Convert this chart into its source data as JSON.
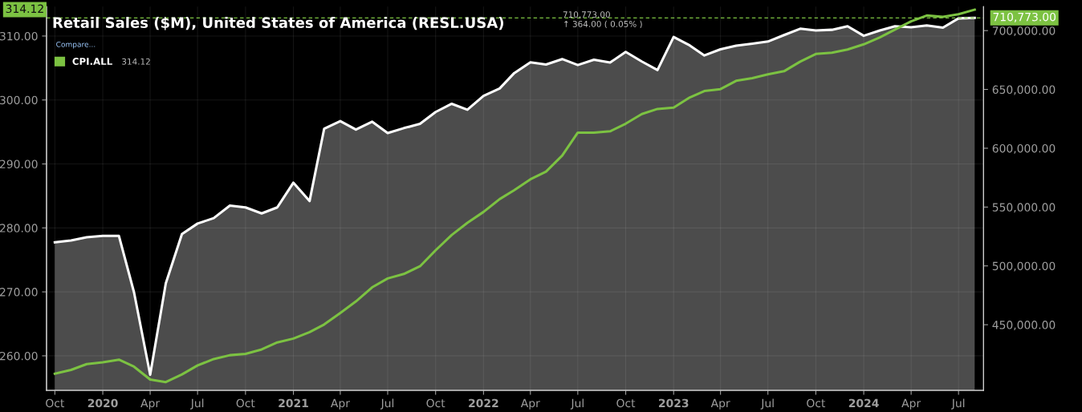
{
  "chart_data": {
    "type": "line",
    "title": "Retail Sales ($M), United States of America (RESL.USA)",
    "x": [
      "2019-10",
      "2019-11",
      "2019-12",
      "2020-01",
      "2020-02",
      "2020-03",
      "2020-04",
      "2020-05",
      "2020-06",
      "2020-07",
      "2020-08",
      "2020-09",
      "2020-10",
      "2020-11",
      "2020-12",
      "2021-01",
      "2021-02",
      "2021-03",
      "2021-04",
      "2021-05",
      "2021-06",
      "2021-07",
      "2021-08",
      "2021-09",
      "2021-10",
      "2021-11",
      "2021-12",
      "2022-01",
      "2022-02",
      "2022-03",
      "2022-04",
      "2022-05",
      "2022-06",
      "2022-07",
      "2022-08",
      "2022-09",
      "2022-10",
      "2022-11",
      "2022-12",
      "2023-01",
      "2023-02",
      "2023-03",
      "2023-04",
      "2023-05",
      "2023-06",
      "2023-07",
      "2023-08",
      "2023-09",
      "2023-10",
      "2023-11",
      "2023-12",
      "2024-01",
      "2024-02",
      "2024-03",
      "2024-04",
      "2024-05",
      "2024-06",
      "2024-07",
      "2024-08"
    ],
    "series": [
      {
        "type": "area",
        "axis": "y2",
        "color": "#ffffff",
        "values": [
          520000,
          521600,
          524300,
          525500,
          525500,
          477500,
          407500,
          485200,
          527000,
          536000,
          540600,
          551200,
          549700,
          544600,
          549700,
          570700,
          555100,
          616500,
          623100,
          615900,
          622600,
          612900,
          617100,
          620700,
          630800,
          637800,
          632700,
          644500,
          650800,
          663900,
          673000,
          671200,
          675800,
          670700,
          675200,
          672800,
          681900,
          673700,
          666500,
          694600,
          687400,
          678900,
          684100,
          687100,
          688900,
          690700,
          696200,
          701600,
          700100,
          700700,
          703700,
          695600,
          700100,
          703700,
          702900,
          704400,
          702500,
          710400,
          710773
        ]
      },
      {
        "axis": "y",
        "name": "CPI.ALL",
        "color": "#7cc242",
        "values": [
          257.2,
          257.8,
          258.7,
          259.0,
          259.4,
          258.3,
          256.3,
          255.9,
          257.1,
          258.5,
          259.5,
          260.1,
          260.3,
          261.0,
          262.1,
          262.7,
          263.7,
          264.9,
          266.7,
          268.5,
          270.7,
          272.1,
          272.8,
          274.0,
          276.5,
          278.9,
          280.8,
          282.5,
          284.5,
          285.9,
          287.6,
          288.8,
          291.3,
          294.9,
          294.9,
          295.1,
          296.3,
          297.8,
          298.6,
          298.8,
          300.4,
          301.4,
          301.7,
          303.0,
          303.4,
          304.0,
          304.5,
          306.0,
          307.2,
          307.4,
          307.9,
          308.7,
          309.8,
          311.0,
          312.3,
          313.2,
          313.0,
          313.4,
          314.12
        ]
      }
    ],
    "xlim": [
      "2019-09-15",
      "2024-08-18"
    ],
    "xticks": [
      {
        "value": "2019-10-01",
        "label": "Oct"
      },
      {
        "value": "2020-01-01",
        "label": "2020"
      },
      {
        "value": "2020-04-01",
        "label": "Apr"
      },
      {
        "value": "2020-07-01",
        "label": "Jul"
      },
      {
        "value": "2020-10-01",
        "label": "Oct"
      },
      {
        "value": "2021-01-01",
        "label": "2021"
      },
      {
        "value": "2021-04-01",
        "label": "Apr"
      },
      {
        "value": "2021-07-01",
        "label": "Jul"
      },
      {
        "value": "2021-10-01",
        "label": "Oct"
      },
      {
        "value": "2022-01-01",
        "label": "2022"
      },
      {
        "value": "2022-04-01",
        "label": "Apr"
      },
      {
        "value": "2022-07-01",
        "label": "Jul"
      },
      {
        "value": "2022-10-01",
        "label": "Oct"
      },
      {
        "value": "2023-01-01",
        "label": "2023"
      },
      {
        "value": "2023-04-01",
        "label": "Apr"
      },
      {
        "value": "2023-07-01",
        "label": "Jul"
      },
      {
        "value": "2023-10-01",
        "label": "Oct"
      },
      {
        "value": "2024-01-01",
        "label": "2024"
      },
      {
        "value": "2024-04-01",
        "label": "Apr"
      },
      {
        "value": "2024-07-01",
        "label": "Jul"
      }
    ],
    "ylim": [
      254.6,
      314.6
    ],
    "yticks": [
      {
        "value": 260,
        "label": "260.00"
      },
      {
        "value": 270,
        "label": "270.00"
      },
      {
        "value": 280,
        "label": "280.00"
      },
      {
        "value": 290,
        "label": "290.00"
      },
      {
        "value": 300,
        "label": "300.00"
      },
      {
        "value": 310,
        "label": "310.00"
      }
    ],
    "y2lim": [
      394200,
      720400
    ],
    "y2ticks": [
      {
        "value": 450000,
        "label": "450,000.00"
      },
      {
        "value": 500000,
        "label": "500,000.00"
      },
      {
        "value": 550000,
        "label": "550,000.00"
      },
      {
        "value": 600000,
        "label": "600,000.00"
      },
      {
        "value": 650000,
        "label": "650,000.00"
      },
      {
        "value": 700000,
        "label": "700,000.00"
      }
    ],
    "ref_lines": [
      {
        "axis": "y2",
        "value": 710773,
        "label": null,
        "color": "#7cc242",
        "line_style": "dashed"
      }
    ],
    "annotations": [
      "Compare...",
      "314.12",
      "710,773.00",
      "↑ 364.00 ( 0.05% )",
      "314.12",
      "710,773.00"
    ],
    "grid": true,
    "legend": "top left"
  }
}
